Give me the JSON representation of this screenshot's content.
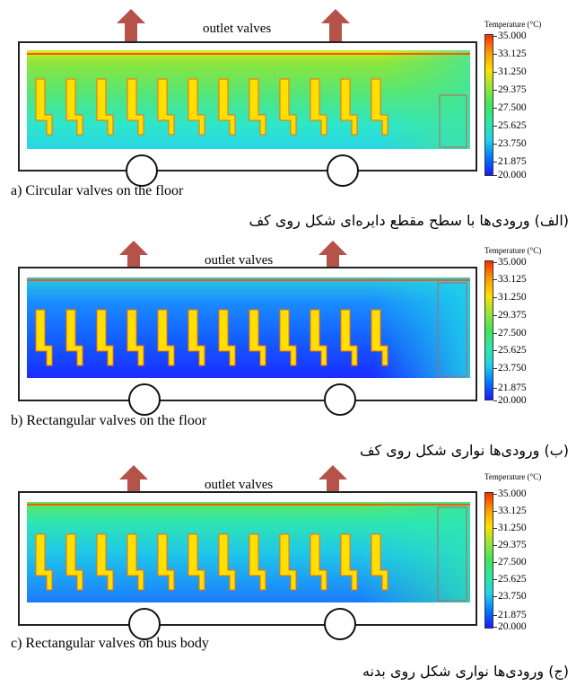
{
  "colors": {
    "scale": [
      "#1a1aff",
      "#0078ff",
      "#1fd3e8",
      "#2ee6a6",
      "#3ee65a",
      "#96e63a",
      "#ffe000",
      "#ff9a00",
      "#ff2a00"
    ],
    "arrow": "#b5524a"
  },
  "legend": {
    "title": "Temperature (°C)",
    "ticks": [
      "35.000",
      "33.125",
      "31.250",
      "29.375",
      "27.500",
      "25.625",
      "23.750",
      "21.875",
      "20.000"
    ]
  },
  "panels": [
    {
      "outlet_label": "outlet valves",
      "caption_en": "a) Circular valves on the floor",
      "caption_fa": "(الف) ورودی‌ها با سطح مقطع دایره‌ای شکل روی کف",
      "field_colors": "green"
    },
    {
      "outlet_label": "outlet valves",
      "caption_en": "b) Rectangular valves on the floor",
      "caption_fa": "(ب) ورودی‌ها نواری شکل روی کف",
      "field_colors": "blue"
    },
    {
      "outlet_label": "outlet valves",
      "caption_en": "c) Rectangular valves on bus body",
      "caption_fa": "(ج) ورودی‌ها نواری شکل روی بدنه",
      "field_colors": "cyan"
    }
  ]
}
